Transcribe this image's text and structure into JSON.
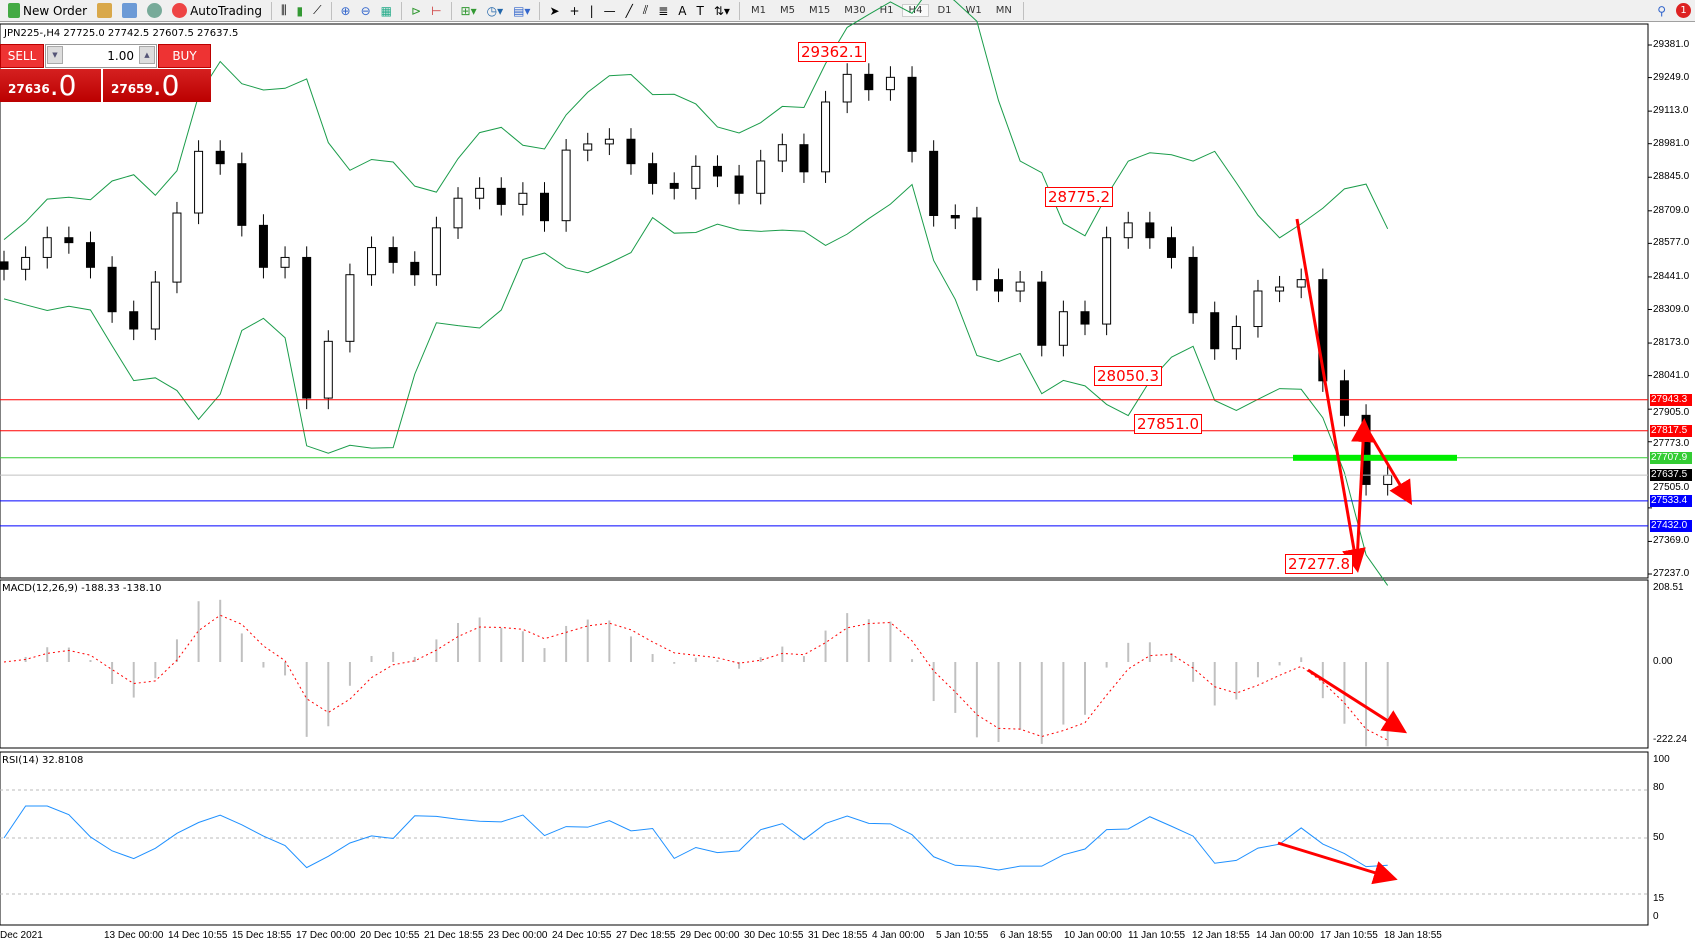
{
  "toolbar": {
    "new_order": "New Order",
    "autotrading": "AutoTrading",
    "timeframes": [
      "M1",
      "M5",
      "M15",
      "M30",
      "H1",
      "H4",
      "D1",
      "W1",
      "MN"
    ],
    "active_timeframe": "H4",
    "notification_count": "1"
  },
  "symbol_line": "JPN225-,H4  27725.0 27742.5 27607.5 27637.5",
  "one_click": {
    "sell": "SELL",
    "buy": "BUY",
    "lot": "1.00",
    "sell_price_small": "27636",
    "sell_price_big": ".0",
    "buy_price_small": "27659",
    "buy_price_big": ".0"
  },
  "colors": {
    "candle": "#000000",
    "bands": "#1a9c4a",
    "support_red": "#ff0000",
    "level_green": "#33cc33",
    "level_blue": "#0000ff",
    "macd_hist": "#c0c0c0",
    "macd_signal": "#ff0000",
    "rsi": "#1e90ff",
    "arrow": "#ff0000"
  },
  "chart_data": {
    "type": "candlestick",
    "closes": [
      28472,
      28520,
      28600,
      28580,
      28480,
      28300,
      28230,
      28420,
      28700,
      28950,
      28900,
      28650,
      28480,
      28520,
      27950,
      28180,
      28450,
      28560,
      28500,
      28450,
      28640,
      28760,
      28800,
      28735,
      28780,
      28669,
      28955,
      28980,
      28999,
      28900,
      28820,
      28800,
      28889,
      28850,
      28780,
      28911,
      28977,
      28867,
      29150,
      29262,
      29200,
      29250,
      28950,
      28690,
      28680,
      28430,
      28384,
      28420,
      28164,
      28300,
      28250,
      28600,
      28660,
      28600,
      28520,
      28296,
      28150,
      28240,
      28384,
      28400,
      28430,
      28020,
      27880,
      27600,
      27637
    ],
    "price_ticks": [
      "29381.0",
      "29249.0",
      "29113.0",
      "28981.0",
      "28845.0",
      "28709.0",
      "28577.0",
      "28441.0",
      "28309.0",
      "28173.0",
      "28041.0",
      "27905.0",
      "27773.0",
      "27505.0",
      "27369.0",
      "27237.0"
    ],
    "price_range": [
      27237,
      29381
    ],
    "annotations": [
      "29362.1",
      "28775.2",
      "28050.3",
      "27851.0",
      "27277.8"
    ],
    "levels": [
      {
        "value": "27943.3",
        "color": "red"
      },
      {
        "value": "27817.5",
        "color": "red"
      },
      {
        "value": "27707.9",
        "color": "green"
      },
      {
        "value": "27637.5",
        "color": "current"
      },
      {
        "value": "27533.4",
        "color": "blue"
      },
      {
        "value": "27432.0",
        "color": "blue"
      }
    ],
    "time_labels": [
      "Dec 2021",
      "13 Dec 00:00",
      "14 Dec 10:55",
      "15 Dec 18:55",
      "17 Dec 00:00",
      "20 Dec 10:55",
      "21 Dec 18:55",
      "23 Dec 00:00",
      "24 Dec 10:55",
      "27 Dec 18:55",
      "29 Dec 00:00",
      "30 Dec 10:55",
      "31 Dec 18:55",
      "4 Jan 00:00",
      "5 Jan 10:55",
      "6 Jan 18:55",
      "10 Jan 00:00",
      "11 Jan 10:55",
      "12 Jan 18:55",
      "14 Jan 00:00",
      "17 Jan 10:55",
      "18 Jan 18:55"
    ]
  },
  "macd": {
    "label": "MACD(12,26,9) -188.33 -138.10",
    "ticks": [
      "208.51",
      "0.00",
      "-222.24"
    ],
    "range": [
      -222.24,
      208.51
    ]
  },
  "rsi": {
    "label": "RSI(14) 32.8108",
    "ticks": [
      "100",
      "80",
      "50",
      "15",
      "0"
    ],
    "levels": [
      80,
      50,
      15
    ]
  }
}
